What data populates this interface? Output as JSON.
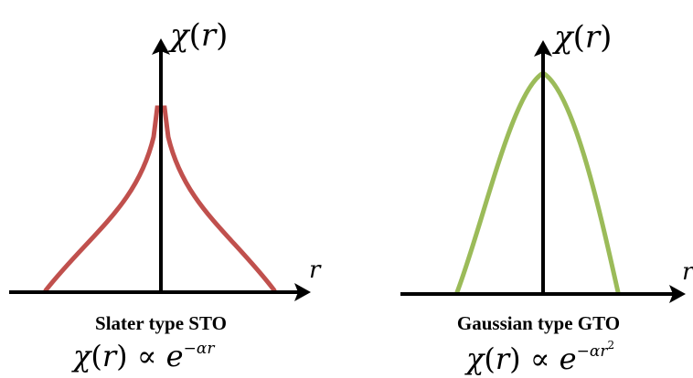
{
  "panels": [
    {
      "y_axis_label": "χ(r)",
      "x_axis_label": "r",
      "caption": "Slater type STO",
      "formula": "χ(r) ∝ e^(−αr)",
      "curve_color": "#c0504d",
      "curve_shape": "cusp"
    },
    {
      "y_axis_label": "χ(r)",
      "x_axis_label": "r",
      "caption": "Gaussian type GTO",
      "formula": "χ(r) ∝ e^(−αr²)",
      "curve_color": "#9bbb59",
      "curve_shape": "gaussian"
    }
  ]
}
